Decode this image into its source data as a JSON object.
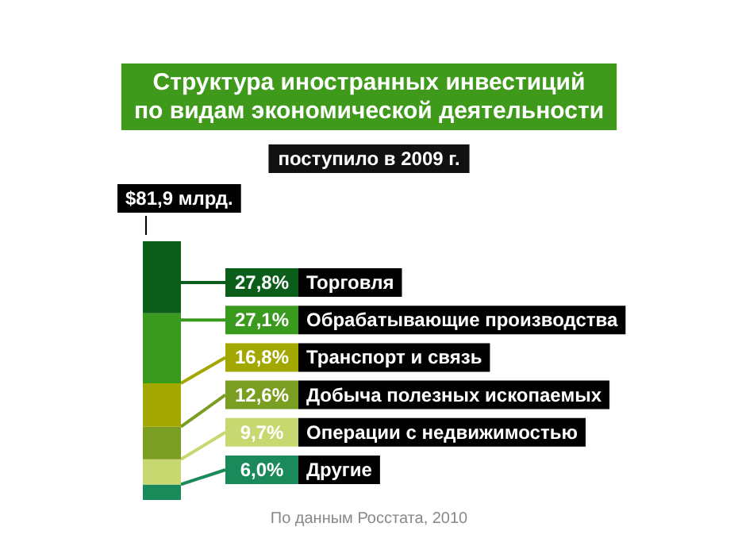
{
  "chart_data": {
    "type": "bar",
    "title": "Структура иностранных инвестиций\nпо видам экономической деятельности",
    "subtitle": "поступило в 2009 г.",
    "categories": [
      null
    ],
    "stacked": true,
    "legend": "right",
    "series": [
      {
        "name": "Другие",
        "color": "#1a8a5a",
        "values": [
          6.0
        ],
        "value_labels": [
          "6,0%"
        ]
      },
      {
        "name": "Операции с недвижимостью",
        "color": "#c8d870",
        "values": [
          9.7
        ],
        "value_labels": [
          "9,7%"
        ]
      },
      {
        "name": "Добыча полезных ископаемых",
        "color": "#7a9e22",
        "values": [
          12.6
        ],
        "value_labels": [
          "12,6%"
        ]
      },
      {
        "name": "Транспорт и связь",
        "color": "#a3a800",
        "values": [
          16.8
        ],
        "value_labels": [
          "16,8%"
        ]
      },
      {
        "name": "Обрабатывающие производства",
        "color": "#3a9a1e",
        "values": [
          27.1
        ],
        "value_labels": [
          "27,1%"
        ]
      },
      {
        "name": "Торговля",
        "color": "#0b5e1a",
        "values": [
          27.8
        ],
        "value_labels": [
          "27,8%"
        ]
      }
    ],
    "annotations": [
      "$81,9 млрд.",
      "По данным Росстата, 2010"
    ]
  }
}
